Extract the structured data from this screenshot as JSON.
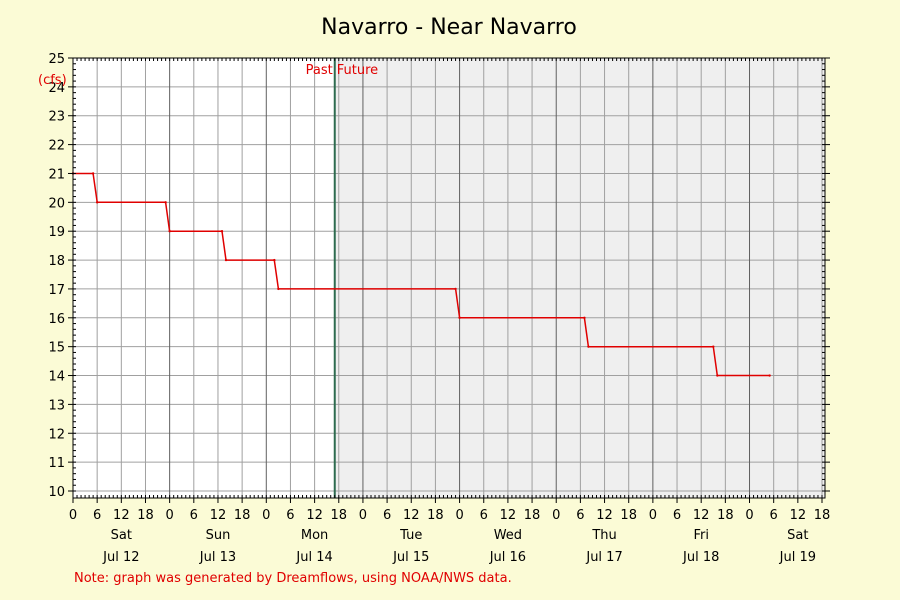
{
  "chart_data": {
    "type": "line",
    "title": "Navarro - Near Navarro",
    "ylabel": "(cfs)",
    "ylim": [
      10,
      25
    ],
    "y_ticks": [
      10,
      11,
      12,
      13,
      14,
      15,
      16,
      17,
      18,
      19,
      20,
      21,
      22,
      23,
      24,
      25
    ],
    "x_range_hours": [
      0,
      186
    ],
    "hour_ticks": [
      "0",
      "6",
      "12",
      "18"
    ],
    "days": [
      {
        "name": "Sat",
        "date": "Jul 12"
      },
      {
        "name": "Sun",
        "date": "Jul 13"
      },
      {
        "name": "Mon",
        "date": "Jul 14"
      },
      {
        "name": "Tue",
        "date": "Jul 15"
      },
      {
        "name": "Wed",
        "date": "Jul 16"
      },
      {
        "name": "Thu",
        "date": "Jul 17"
      },
      {
        "name": "Fri",
        "date": "Jul 18"
      },
      {
        "name": "Sat",
        "date": "Jul 19"
      }
    ],
    "past_label": "Past",
    "future_label": "Future",
    "now_hour": 65,
    "series": [
      {
        "color": "#e00000",
        "x": [
          0,
          5,
          6,
          23,
          24,
          37,
          38,
          50,
          51,
          95,
          96,
          127,
          128,
          159,
          160,
          173
        ],
        "values": [
          21,
          21,
          20,
          20,
          19,
          19,
          18,
          18,
          17,
          17,
          16,
          16,
          15,
          15,
          14,
          14
        ]
      }
    ],
    "grid": true,
    "colors": {
      "background": "#fbfbd6",
      "past_bg": "#ffffff",
      "future_bg": "#efefef",
      "grid": "#a0a0a0",
      "now_line": "#2e6b4f",
      "series": "#e00000",
      "note": "#e00000"
    }
  },
  "footer": {
    "note": "Note: graph was generated by Dreamflows, using NOAA/NWS data."
  }
}
